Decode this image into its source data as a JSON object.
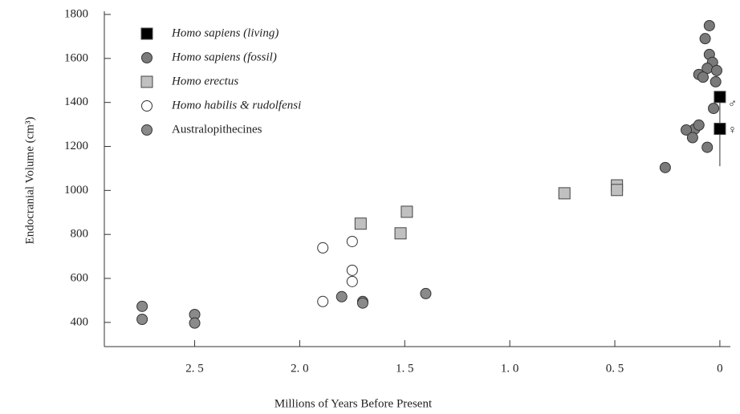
{
  "chart_data": {
    "type": "scatter",
    "x_label": "Millions of Years Before Present",
    "y_label": "Endocranial Volume (cm³)",
    "xlim": [
      2.93,
      -0.05
    ],
    "ylim": [
      290,
      1800
    ],
    "xticks": [
      {
        "value": 2.5,
        "label": "2. 5"
      },
      {
        "value": 2.0,
        "label": "2. 0"
      },
      {
        "value": 1.5,
        "label": "1. 5"
      },
      {
        "value": 1.0,
        "label": "1. 0"
      },
      {
        "value": 0.5,
        "label": "0. 5"
      },
      0
    ],
    "yticks": [
      400,
      600,
      800,
      1000,
      1200,
      1400,
      1600,
      1800
    ],
    "legend": "upper left",
    "series": [
      {
        "name": "Homo sapiens (living)",
        "marker": "square",
        "color": "#000000",
        "x": [
          0,
          0
        ],
        "y": [
          1425,
          1280
        ]
      },
      {
        "name": "Homo sapiens (fossil)",
        "marker": "circle",
        "color": "#7a7a7a",
        "x": [
          0.05,
          0.07,
          0.05,
          0.035,
          0.06,
          0.015,
          0.1,
          0.08,
          0.02,
          0.03,
          0.12,
          0.1,
          0.16,
          0.13,
          0.06,
          0.26
        ],
        "y": [
          1749,
          1690,
          1618,
          1582,
          1555,
          1545,
          1527,
          1515,
          1494,
          1373,
          1279,
          1297,
          1275,
          1240,
          1196,
          1104
        ]
      },
      {
        "name": "Homo erectus",
        "marker": "square",
        "color": "#c0c0c0",
        "x": [
          1.71,
          1.49,
          1.52,
          0.74,
          0.49,
          0.49
        ],
        "y": [
          849,
          903,
          805,
          987,
          1023,
          1002
        ]
      },
      {
        "name": "Homo habilis & rudolfensi",
        "marker": "circle",
        "color": "#ffffff",
        "x": [
          1.89,
          1.75,
          1.75,
          1.75,
          1.89
        ],
        "y": [
          739,
          768,
          637,
          586,
          495
        ]
      },
      {
        "name": "Australopithecines",
        "marker": "circle",
        "color": "#8a8a8a",
        "x": [
          2.75,
          2.75,
          2.5,
          2.5,
          1.8,
          1.7,
          1.7,
          1.4
        ],
        "y": [
          473,
          414,
          436,
          397,
          517,
          495,
          488,
          531
        ]
      }
    ],
    "error_bar": {
      "x": 0,
      "low": 1110,
      "high": 1430
    },
    "annotations": [
      {
        "text": "♂",
        "x": 0,
        "y": 1390
      },
      {
        "text": "♀",
        "x": 0,
        "y": 1270
      }
    ]
  }
}
